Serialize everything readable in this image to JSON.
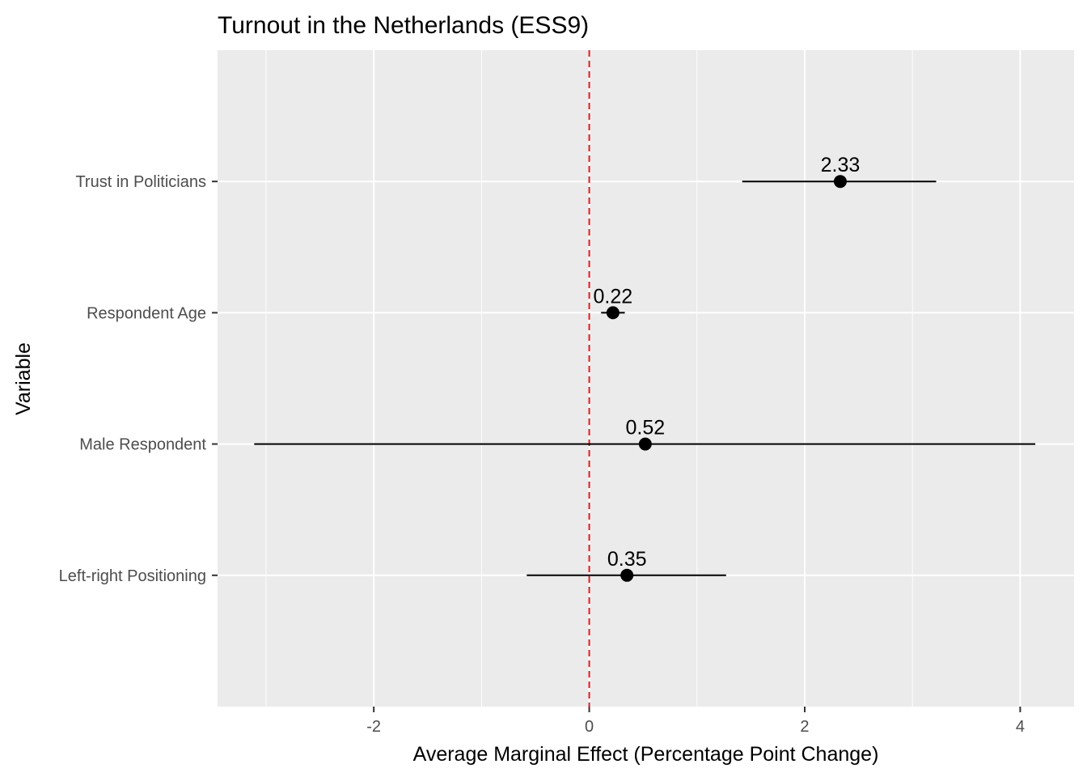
{
  "chart_data": {
    "type": "scatter",
    "title": "Turnout in the Netherlands (ESS9)",
    "xlabel": "Average Marginal Effect (Percentage Point Change)",
    "ylabel": "Variable",
    "xlim": [
      -3.45,
      4.5
    ],
    "x_ticks": [
      -2,
      0,
      2,
      4
    ],
    "x_tick_labels": [
      "-2",
      "0",
      "2",
      "4"
    ],
    "categories": [
      "Trust in Politicians",
      "Respondent Age",
      "Male Respondent",
      "Left-right Positioning"
    ],
    "estimates": [
      2.33,
      0.22,
      0.52,
      0.35
    ],
    "data_labels": [
      "2.33",
      "0.22",
      "0.52",
      "0.35"
    ],
    "ci_lower": [
      1.42,
      0.11,
      -3.11,
      -0.58
    ],
    "ci_upper": [
      3.22,
      0.33,
      4.14,
      1.27
    ],
    "reference_line": 0,
    "grid": true,
    "legend": "none",
    "colors": {
      "panel": "#ebebeb",
      "grid": "#ffffff",
      "reference_line": "#e31a1c",
      "points": "#000000"
    }
  }
}
